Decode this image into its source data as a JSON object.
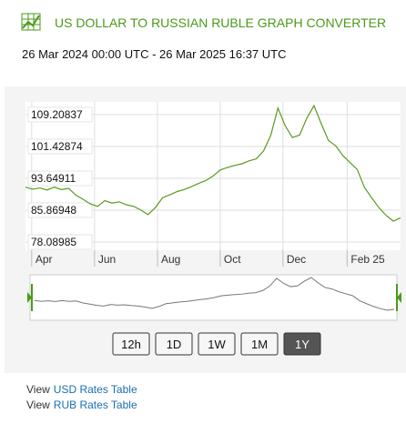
{
  "header": {
    "title": "US DOLLAR TO RUSSIAN RUBLE GRAPH CONVERTER",
    "range": "26 Mar 2024 00:00 UTC - 26 Mar 2025 16:37 UTC"
  },
  "chart_data": {
    "type": "line",
    "color": "#5b9a1e",
    "grid": true,
    "values": [
      91.5,
      91.0,
      91.3,
      90.8,
      91.5,
      90.9,
      91.2,
      89.5,
      88.5,
      87.4,
      86.8,
      88.2,
      87.6,
      87.9,
      87.2,
      86.8,
      85.9,
      84.8,
      86.5,
      88.9,
      89.6,
      90.4,
      90.9,
      91.6,
      92.4,
      93.1,
      94.2,
      95.7,
      96.3,
      96.8,
      97.2,
      97.9,
      98.4,
      100.3,
      104.1,
      110.8,
      106.5,
      103.6,
      104.2,
      108.3,
      111.4,
      107.0,
      102.9,
      101.6,
      99.2,
      97.5,
      95.8,
      91.4,
      88.9,
      86.5,
      84.6,
      83.2,
      84.0
    ],
    "ylim": [
      76.1,
      112.3
    ],
    "yticks": [
      78.08985,
      85.86948,
      93.64911,
      101.42874,
      109.20837
    ],
    "xlim": [
      0,
      52
    ],
    "xticks": [
      {
        "value": 0.86,
        "label": "Apr"
      },
      {
        "value": 9.57,
        "label": "Jun"
      },
      {
        "value": 18.3,
        "label": "Aug"
      },
      {
        "value": 27,
        "label": "Oct"
      },
      {
        "value": 35.7,
        "label": "Dec"
      },
      {
        "value": 44.6,
        "label": "Feb 25"
      }
    ]
  },
  "buttons": [
    "12h",
    "1D",
    "1W",
    "1M",
    "1Y"
  ],
  "links": [
    {
      "prefix": "View",
      "text": "USD Rates Table"
    },
    {
      "prefix": "View",
      "text": "RUB Rates Table"
    }
  ]
}
